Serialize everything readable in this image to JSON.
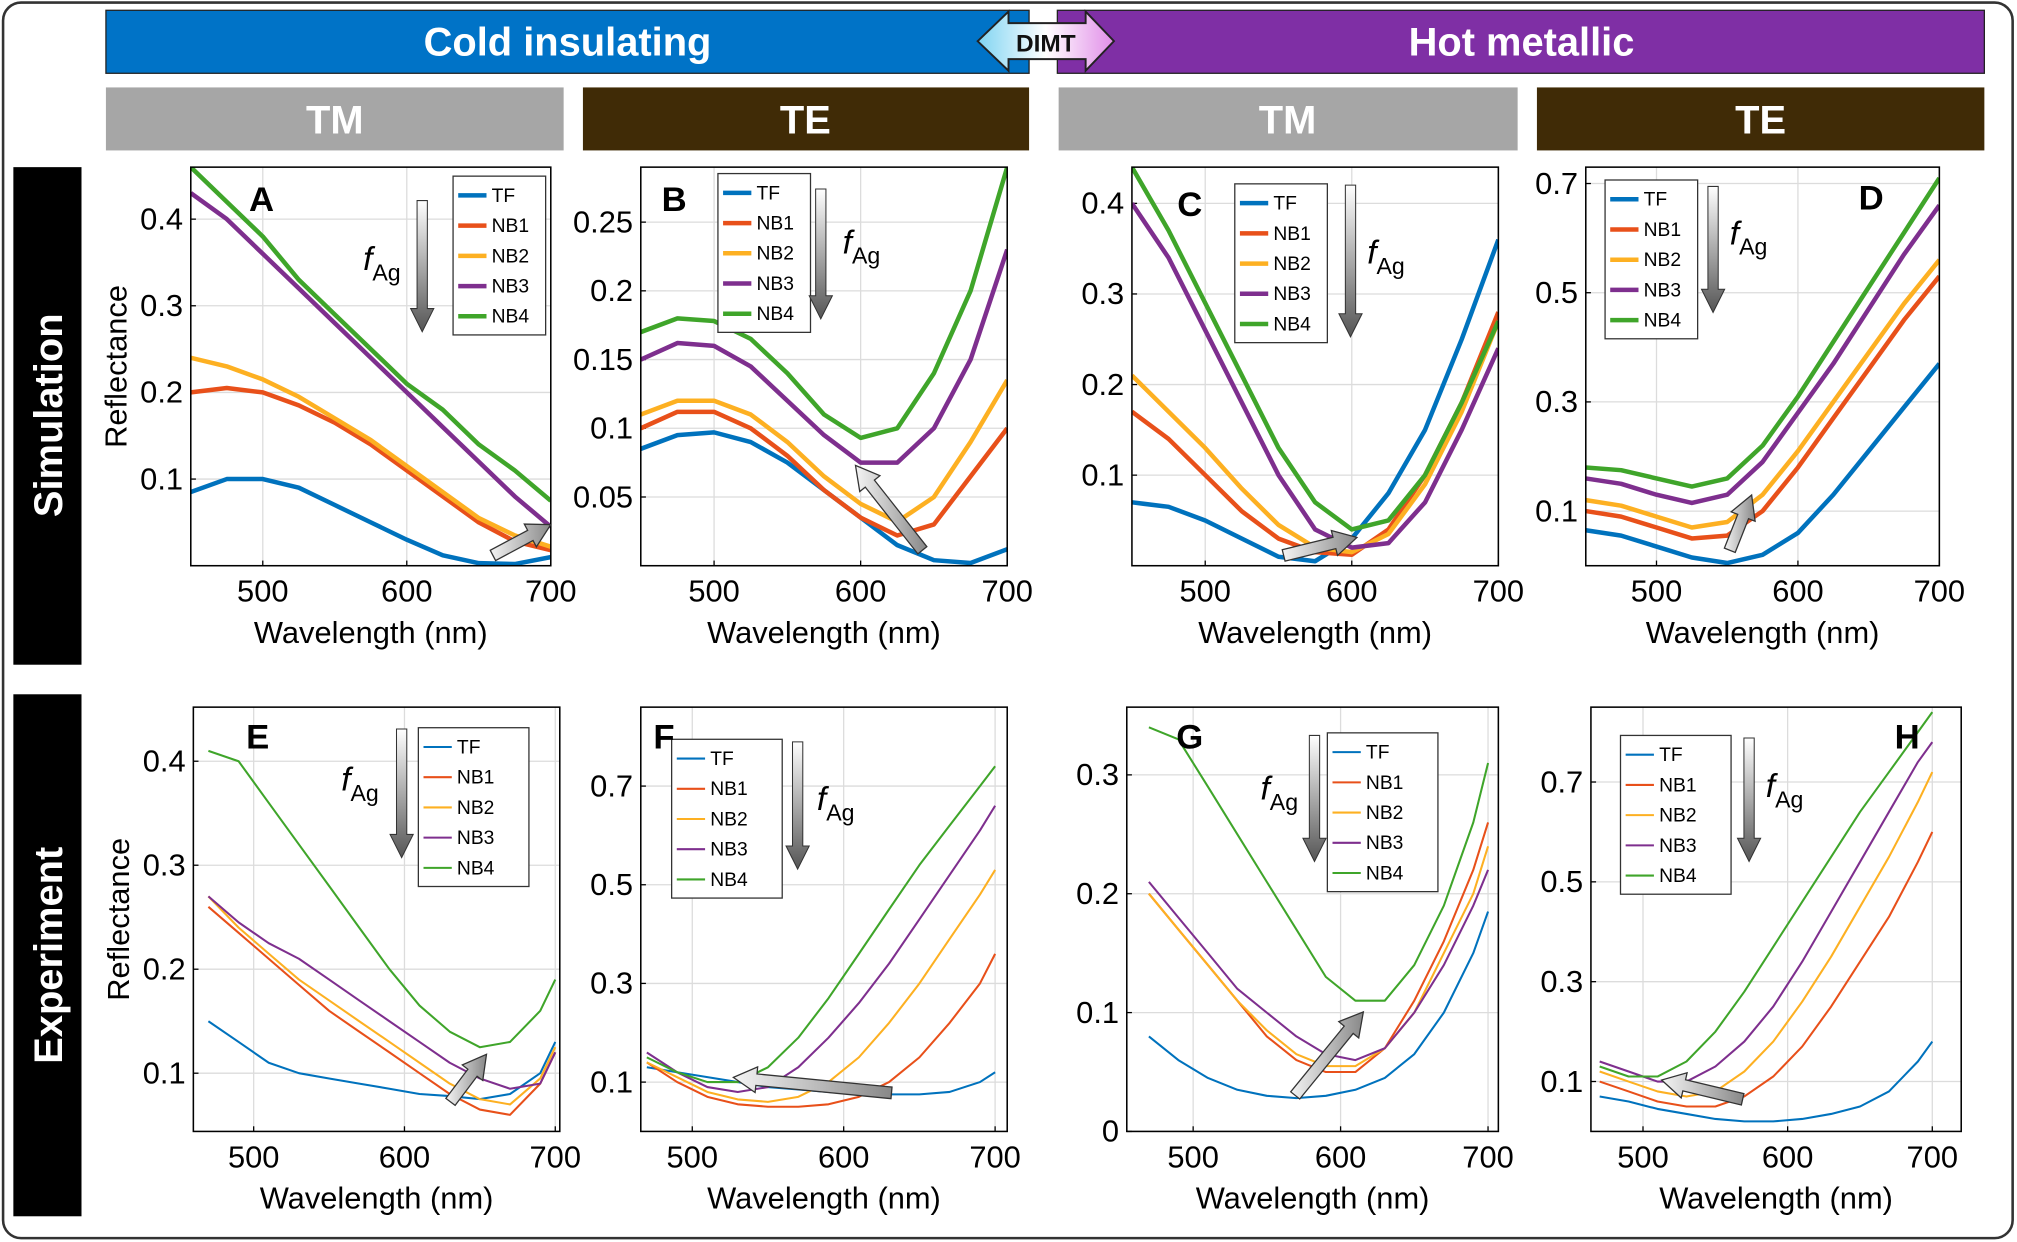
{
  "header": {
    "cold": "Cold insulating",
    "dimt": "DIMT",
    "hot": "Hot metallic",
    "modes": [
      "TM",
      "TE",
      "TM",
      "TE"
    ],
    "rows": [
      "Simulation",
      "Experiment"
    ]
  },
  "chart_data": [
    {
      "type": "line",
      "panel": "A",
      "xlabel": "Wavelength (nm)",
      "ylabel": "Reflectance",
      "arrow_label": {
        "symbol": "f",
        "subscript": "Ag"
      },
      "x": [
        450,
        475,
        500,
        525,
        550,
        575,
        600,
        625,
        650,
        675,
        700
      ],
      "xlim": [
        450,
        700
      ],
      "ylim": [
        0,
        0.46
      ],
      "xticks": [
        500,
        600,
        700
      ],
      "yticks": [
        0.1,
        0.2,
        0.3,
        0.4
      ],
      "grid": true,
      "series": [
        {
          "name": "TF",
          "color": "#0072bd",
          "values": [
            0.085,
            0.1,
            0.1,
            0.09,
            0.07,
            0.05,
            0.03,
            0.012,
            0.003,
            0.002,
            0.01
          ]
        },
        {
          "name": "NB1",
          "color": "#e8501a",
          "values": [
            0.2,
            0.205,
            0.2,
            0.185,
            0.165,
            0.14,
            0.11,
            0.08,
            0.05,
            0.028,
            0.018
          ]
        },
        {
          "name": "NB2",
          "color": "#fdb022",
          "values": [
            0.24,
            0.23,
            0.215,
            0.195,
            0.17,
            0.145,
            0.115,
            0.085,
            0.055,
            0.035,
            0.022
          ]
        },
        {
          "name": "NB3",
          "color": "#7e2f8e",
          "values": [
            0.43,
            0.4,
            0.36,
            0.32,
            0.28,
            0.24,
            0.2,
            0.16,
            0.12,
            0.08,
            0.045
          ]
        },
        {
          "name": "NB4",
          "color": "#3fa52a",
          "values": [
            0.46,
            0.42,
            0.38,
            0.33,
            0.29,
            0.25,
            0.21,
            0.18,
            0.14,
            0.11,
            0.075
          ]
        }
      ]
    },
    {
      "type": "line",
      "panel": "B",
      "xlabel": "Wavelength (nm)",
      "arrow_label": {
        "symbol": "f",
        "subscript": "Ag"
      },
      "x": [
        450,
        475,
        500,
        525,
        550,
        575,
        600,
        625,
        650,
        675,
        700
      ],
      "xlim": [
        450,
        700
      ],
      "ylim": [
        0,
        0.29
      ],
      "xticks": [
        500,
        600,
        700
      ],
      "yticks": [
        0.05,
        0.1,
        0.15,
        0.2,
        0.25
      ],
      "grid": true,
      "series": [
        {
          "name": "TF",
          "color": "#0072bd",
          "values": [
            0.085,
            0.095,
            0.097,
            0.09,
            0.075,
            0.055,
            0.035,
            0.015,
            0.004,
            0.002,
            0.012
          ]
        },
        {
          "name": "NB1",
          "color": "#e8501a",
          "values": [
            0.1,
            0.112,
            0.112,
            0.1,
            0.08,
            0.055,
            0.035,
            0.022,
            0.03,
            0.065,
            0.1
          ]
        },
        {
          "name": "NB2",
          "color": "#fdb022",
          "values": [
            0.11,
            0.12,
            0.12,
            0.11,
            0.09,
            0.065,
            0.045,
            0.032,
            0.05,
            0.09,
            0.135
          ]
        },
        {
          "name": "NB3",
          "color": "#7e2f8e",
          "values": [
            0.15,
            0.162,
            0.16,
            0.145,
            0.12,
            0.095,
            0.075,
            0.075,
            0.1,
            0.15,
            0.23
          ]
        },
        {
          "name": "NB4",
          "color": "#3fa52a",
          "values": [
            0.17,
            0.18,
            0.178,
            0.165,
            0.14,
            0.11,
            0.093,
            0.1,
            0.14,
            0.2,
            0.29
          ]
        }
      ]
    },
    {
      "type": "line",
      "panel": "C",
      "xlabel": "Wavelength (nm)",
      "arrow_label": {
        "symbol": "f",
        "subscript": "Ag"
      },
      "x": [
        450,
        475,
        500,
        525,
        550,
        575,
        600,
        625,
        650,
        675,
        700
      ],
      "xlim": [
        450,
        700
      ],
      "ylim": [
        0,
        0.44
      ],
      "xticks": [
        500,
        600,
        700
      ],
      "yticks": [
        0.1,
        0.2,
        0.3,
        0.4
      ],
      "grid": true,
      "series": [
        {
          "name": "TF",
          "color": "#0072bd",
          "values": [
            0.07,
            0.065,
            0.05,
            0.03,
            0.01,
            0.005,
            0.03,
            0.08,
            0.15,
            0.25,
            0.36
          ]
        },
        {
          "name": "NB1",
          "color": "#e8501a",
          "values": [
            0.17,
            0.14,
            0.1,
            0.06,
            0.03,
            0.015,
            0.012,
            0.04,
            0.1,
            0.18,
            0.28
          ]
        },
        {
          "name": "NB2",
          "color": "#fdb022",
          "values": [
            0.21,
            0.17,
            0.13,
            0.085,
            0.045,
            0.02,
            0.015,
            0.035,
            0.09,
            0.17,
            0.27
          ]
        },
        {
          "name": "NB3",
          "color": "#7e2f8e",
          "values": [
            0.4,
            0.34,
            0.26,
            0.18,
            0.1,
            0.04,
            0.02,
            0.025,
            0.07,
            0.15,
            0.24
          ]
        },
        {
          "name": "NB4",
          "color": "#3fa52a",
          "values": [
            0.44,
            0.37,
            0.29,
            0.21,
            0.13,
            0.07,
            0.04,
            0.05,
            0.1,
            0.18,
            0.27
          ]
        }
      ]
    },
    {
      "type": "line",
      "panel": "D",
      "xlabel": "Wavelength (nm)",
      "arrow_label": {
        "symbol": "f",
        "subscript": "Ag"
      },
      "x": [
        450,
        475,
        500,
        525,
        550,
        575,
        600,
        625,
        650,
        675,
        700
      ],
      "xlim": [
        450,
        700
      ],
      "ylim": [
        0,
        0.73
      ],
      "xticks": [
        500,
        600,
        700
      ],
      "yticks": [
        0.1,
        0.3,
        0.5,
        0.7
      ],
      "grid": true,
      "series": [
        {
          "name": "TF",
          "color": "#0072bd",
          "values": [
            0.065,
            0.055,
            0.035,
            0.015,
            0.005,
            0.02,
            0.06,
            0.13,
            0.21,
            0.29,
            0.37
          ]
        },
        {
          "name": "NB1",
          "color": "#e8501a",
          "values": [
            0.1,
            0.09,
            0.07,
            0.05,
            0.055,
            0.1,
            0.18,
            0.27,
            0.36,
            0.45,
            0.53
          ]
        },
        {
          "name": "NB2",
          "color": "#fdb022",
          "values": [
            0.12,
            0.11,
            0.09,
            0.07,
            0.08,
            0.13,
            0.21,
            0.3,
            0.39,
            0.48,
            0.56
          ]
        },
        {
          "name": "NB3",
          "color": "#7e2f8e",
          "values": [
            0.16,
            0.15,
            0.13,
            0.115,
            0.13,
            0.19,
            0.28,
            0.37,
            0.47,
            0.57,
            0.66
          ]
        },
        {
          "name": "NB4",
          "color": "#3fa52a",
          "values": [
            0.18,
            0.175,
            0.16,
            0.145,
            0.16,
            0.22,
            0.31,
            0.41,
            0.51,
            0.61,
            0.71
          ]
        }
      ]
    },
    {
      "type": "line",
      "panel": "E",
      "xlabel": "Wavelength (nm)",
      "ylabel": "Reflectance",
      "arrow_label": {
        "symbol": "f",
        "subscript": "Ag"
      },
      "x": [
        470,
        490,
        510,
        530,
        550,
        570,
        590,
        610,
        630,
        650,
        670,
        690,
        700
      ],
      "xlim": [
        460,
        703
      ],
      "ylim": [
        0.044,
        0.452
      ],
      "xticks": [
        500,
        600,
        700
      ],
      "yticks": [
        0.1,
        0.2,
        0.3,
        0.4
      ],
      "grid": true,
      "series": [
        {
          "name": "TF",
          "color": "#0072bd",
          "values": [
            0.15,
            0.13,
            0.11,
            0.1,
            0.095,
            0.09,
            0.085,
            0.08,
            0.078,
            0.075,
            0.08,
            0.1,
            0.13
          ]
        },
        {
          "name": "NB1",
          "color": "#e8501a",
          "values": [
            0.26,
            0.235,
            0.21,
            0.185,
            0.16,
            0.14,
            0.12,
            0.1,
            0.08,
            0.065,
            0.06,
            0.09,
            0.12
          ]
        },
        {
          "name": "NB2",
          "color": "#fdb022",
          "values": [
            0.27,
            0.24,
            0.215,
            0.19,
            0.17,
            0.15,
            0.13,
            0.11,
            0.09,
            0.075,
            0.07,
            0.095,
            0.125
          ]
        },
        {
          "name": "NB3",
          "color": "#7e2f8e",
          "values": [
            0.27,
            0.245,
            0.225,
            0.21,
            0.19,
            0.17,
            0.15,
            0.13,
            0.11,
            0.095,
            0.085,
            0.09,
            0.12
          ]
        },
        {
          "name": "NB4",
          "color": "#3fa52a",
          "values": [
            0.41,
            0.4,
            0.36,
            0.32,
            0.28,
            0.24,
            0.2,
            0.165,
            0.14,
            0.125,
            0.13,
            0.16,
            0.19
          ]
        }
      ]
    },
    {
      "type": "line",
      "panel": "F",
      "xlabel": "Wavelength (nm)",
      "arrow_label": {
        "symbol": "f",
        "subscript": "Ag"
      },
      "x": [
        470,
        490,
        510,
        530,
        550,
        570,
        590,
        610,
        630,
        650,
        670,
        690,
        700
      ],
      "xlim": [
        466,
        708
      ],
      "ylim": [
        0,
        0.86
      ],
      "xticks": [
        500,
        600,
        700
      ],
      "yticks": [
        0.1,
        0.3,
        0.5,
        0.7
      ],
      "grid": true,
      "series": [
        {
          "name": "TF",
          "color": "#0072bd",
          "values": [
            0.13,
            0.12,
            0.11,
            0.1,
            0.09,
            0.085,
            0.08,
            0.075,
            0.075,
            0.075,
            0.08,
            0.1,
            0.12
          ]
        },
        {
          "name": "NB1",
          "color": "#e8501a",
          "values": [
            0.14,
            0.1,
            0.07,
            0.055,
            0.05,
            0.05,
            0.055,
            0.07,
            0.1,
            0.15,
            0.22,
            0.3,
            0.36
          ]
        },
        {
          "name": "NB2",
          "color": "#fdb022",
          "values": [
            0.14,
            0.11,
            0.08,
            0.065,
            0.06,
            0.07,
            0.1,
            0.15,
            0.22,
            0.3,
            0.39,
            0.48,
            0.53
          ]
        },
        {
          "name": "NB3",
          "color": "#7e2f8e",
          "values": [
            0.16,
            0.12,
            0.09,
            0.08,
            0.09,
            0.13,
            0.19,
            0.26,
            0.34,
            0.43,
            0.52,
            0.61,
            0.66
          ]
        },
        {
          "name": "NB4",
          "color": "#3fa52a",
          "values": [
            0.15,
            0.12,
            0.1,
            0.1,
            0.13,
            0.19,
            0.27,
            0.36,
            0.45,
            0.54,
            0.62,
            0.7,
            0.74
          ]
        }
      ]
    },
    {
      "type": "line",
      "panel": "G",
      "xlabel": "Wavelength (nm)",
      "arrow_label": {
        "symbol": "f",
        "subscript": "Ag"
      },
      "x": [
        470,
        490,
        510,
        530,
        550,
        570,
        590,
        610,
        630,
        650,
        670,
        690,
        700
      ],
      "xlim": [
        455,
        707
      ],
      "ylim": [
        0,
        0.357
      ],
      "xticks": [
        500,
        600,
        700
      ],
      "yticks": [
        0,
        0.1,
        0.2,
        0.3
      ],
      "grid": true,
      "series": [
        {
          "name": "TF",
          "color": "#0072bd",
          "values": [
            0.08,
            0.06,
            0.045,
            0.035,
            0.03,
            0.028,
            0.03,
            0.035,
            0.045,
            0.065,
            0.1,
            0.15,
            0.185
          ]
        },
        {
          "name": "NB1",
          "color": "#e8501a",
          "values": [
            0.2,
            0.17,
            0.14,
            0.11,
            0.08,
            0.06,
            0.05,
            0.05,
            0.07,
            0.11,
            0.16,
            0.22,
            0.26
          ]
        },
        {
          "name": "NB2",
          "color": "#fdb022",
          "values": [
            0.2,
            0.17,
            0.14,
            0.11,
            0.085,
            0.065,
            0.055,
            0.055,
            0.07,
            0.1,
            0.15,
            0.2,
            0.24
          ]
        },
        {
          "name": "NB3",
          "color": "#7e2f8e",
          "values": [
            0.21,
            0.18,
            0.15,
            0.12,
            0.1,
            0.08,
            0.065,
            0.06,
            0.07,
            0.1,
            0.14,
            0.19,
            0.22
          ]
        },
        {
          "name": "NB4",
          "color": "#3fa52a",
          "values": [
            0.34,
            0.33,
            0.29,
            0.25,
            0.21,
            0.17,
            0.13,
            0.11,
            0.11,
            0.14,
            0.19,
            0.26,
            0.31
          ]
        }
      ]
    },
    {
      "type": "line",
      "panel": "H",
      "xlabel": "Wavelength (nm)",
      "arrow_label": {
        "symbol": "f",
        "subscript": "Ag"
      },
      "x": [
        470,
        490,
        510,
        530,
        550,
        570,
        590,
        610,
        630,
        650,
        670,
        690,
        700
      ],
      "xlim": [
        464,
        720
      ],
      "ylim": [
        0,
        0.85
      ],
      "xticks": [
        500,
        600,
        700
      ],
      "yticks": [
        0.1,
        0.3,
        0.5,
        0.7
      ],
      "grid": true,
      "series": [
        {
          "name": "TF",
          "color": "#0072bd",
          "values": [
            0.07,
            0.06,
            0.045,
            0.035,
            0.025,
            0.02,
            0.02,
            0.025,
            0.035,
            0.05,
            0.08,
            0.14,
            0.18
          ]
        },
        {
          "name": "NB1",
          "color": "#e8501a",
          "values": [
            0.1,
            0.08,
            0.06,
            0.05,
            0.05,
            0.07,
            0.11,
            0.17,
            0.25,
            0.34,
            0.43,
            0.54,
            0.6
          ]
        },
        {
          "name": "NB2",
          "color": "#fdb022",
          "values": [
            0.12,
            0.1,
            0.08,
            0.07,
            0.08,
            0.12,
            0.18,
            0.26,
            0.35,
            0.45,
            0.55,
            0.66,
            0.72
          ]
        },
        {
          "name": "NB3",
          "color": "#7e2f8e",
          "values": [
            0.14,
            0.12,
            0.1,
            0.1,
            0.13,
            0.18,
            0.25,
            0.34,
            0.44,
            0.54,
            0.64,
            0.74,
            0.78
          ]
        },
        {
          "name": "NB4",
          "color": "#3fa52a",
          "values": [
            0.13,
            0.11,
            0.11,
            0.14,
            0.2,
            0.28,
            0.37,
            0.46,
            0.55,
            0.64,
            0.72,
            0.8,
            0.84
          ]
        }
      ]
    }
  ]
}
